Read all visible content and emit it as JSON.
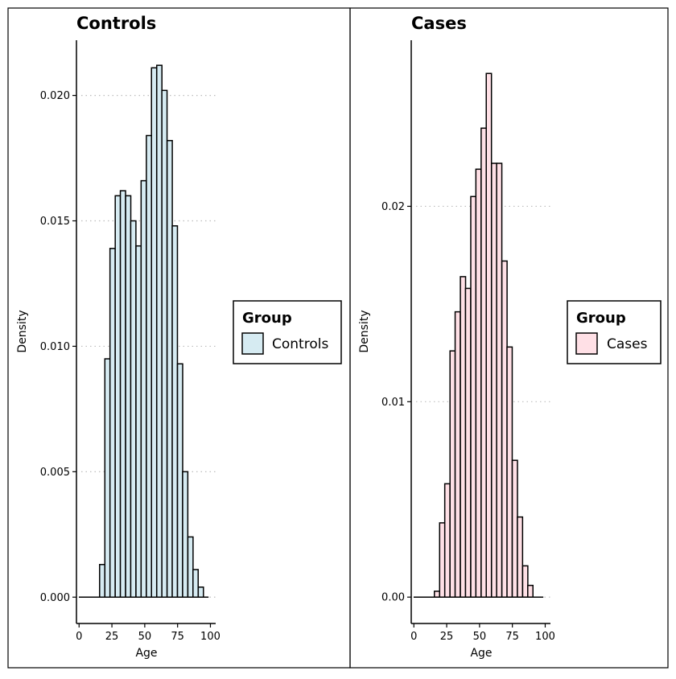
{
  "chart_data": [
    {
      "type": "bar",
      "title": "Controls",
      "xlabel": "Age",
      "ylabel": "Density",
      "xlim": [
        -2,
        104
      ],
      "ylim": [
        -0.00105,
        0.0222
      ],
      "xticks": [
        0,
        25,
        50,
        75,
        100
      ],
      "xtick_labels": [
        "0",
        "25",
        "50",
        "75",
        "100"
      ],
      "yticks": [
        0.0,
        0.005,
        0.01,
        0.015,
        0.02
      ],
      "ytick_labels": [
        "0.000",
        "0.005",
        "0.010",
        "0.015",
        "0.020"
      ],
      "grid": "horizontal dotted",
      "bin_width": 3.95,
      "x": [
        1.8,
        5.8,
        9.7,
        13.7,
        17.6,
        21.6,
        25.5,
        29.5,
        33.4,
        37.4,
        41.3,
        45.3,
        49.2,
        53.2,
        57.1,
        61.1,
        65.0,
        69.0,
        72.9,
        76.9,
        80.8,
        84.8,
        88.7,
        92.7,
        96.6
      ],
      "values": [
        0.0,
        0.0,
        0.0,
        0.0,
        0.0013,
        0.0095,
        0.0139,
        0.016,
        0.0162,
        0.016,
        0.015,
        0.014,
        0.0166,
        0.0184,
        0.0211,
        0.0212,
        0.0202,
        0.0182,
        0.0148,
        0.0093,
        0.005,
        0.0024,
        0.0011,
        0.0004,
        0.0
      ],
      "fill": "#d6ebf2",
      "legend": {
        "title": "Group",
        "entries": [
          "Controls"
        ],
        "position": "right"
      }
    },
    {
      "type": "bar",
      "title": "Cases",
      "xlabel": "Age",
      "ylabel": "Density",
      "xlim": [
        -2,
        104
      ],
      "ylim": [
        -0.00135,
        0.0285
      ],
      "xticks": [
        0,
        25,
        50,
        75,
        100
      ],
      "xtick_labels": [
        "0",
        "25",
        "50",
        "75",
        "100"
      ],
      "yticks": [
        0.0,
        0.01,
        0.02
      ],
      "ytick_labels": [
        "0.00",
        "0.01",
        "0.02"
      ],
      "grid": "horizontal dotted",
      "bin_width": 3.95,
      "x": [
        1.8,
        5.8,
        9.7,
        13.7,
        17.6,
        21.6,
        25.5,
        29.5,
        33.4,
        37.4,
        41.3,
        45.3,
        49.2,
        53.2,
        57.1,
        61.1,
        65.0,
        69.0,
        72.9,
        76.9,
        80.8,
        84.8,
        88.7,
        92.7,
        96.6
      ],
      "values": [
        0.0,
        0.0,
        0.0,
        0.0,
        0.0003,
        0.0038,
        0.0058,
        0.0126,
        0.0146,
        0.0164,
        0.0158,
        0.0205,
        0.0219,
        0.024,
        0.0268,
        0.0222,
        0.0222,
        0.0172,
        0.0128,
        0.007,
        0.0041,
        0.0016,
        0.0006,
        0.0,
        0.0
      ],
      "fill": "#ffe0e6",
      "legend": {
        "title": "Group",
        "entries": [
          "Cases"
        ],
        "position": "right"
      }
    }
  ]
}
